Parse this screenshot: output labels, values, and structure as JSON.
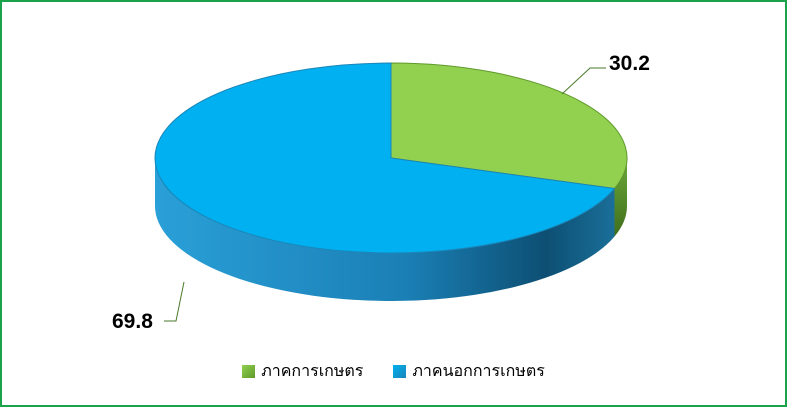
{
  "chart_data": {
    "type": "pie",
    "style": "3d",
    "slices": [
      {
        "label": "ภาคการเกษตร",
        "value": 30.2,
        "color": "#92d050",
        "side_color": "#5f9a2a",
        "value_label": "30.2"
      },
      {
        "label": "ภาคนอกการเกษตร",
        "value": 69.8,
        "color": "#00b0f0",
        "side_color": "#1a86b8",
        "value_label": "69.8"
      }
    ],
    "legend": {
      "position": "bottom"
    },
    "frame_color": "#1aa34a"
  }
}
